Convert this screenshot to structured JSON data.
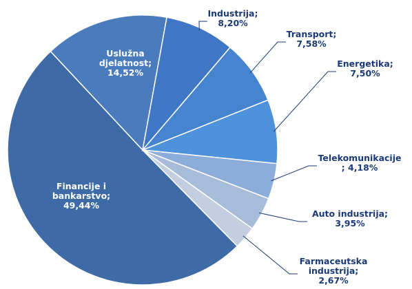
{
  "chart_data": {
    "type": "pie",
    "categories": [
      "Financije i bankarstvo;",
      "Uslužna djelatnost;",
      "Industrija;",
      "Transport;",
      "Energetika;",
      "Telekomunikacije",
      "Auto industrija;",
      "Farmaceutska industrija;"
    ],
    "values": [
      49.44,
      14.52,
      8.2,
      7.58,
      7.5,
      4.18,
      3.95,
      2.67
    ],
    "value_labels": [
      "49,44%",
      "14,52%",
      "8,20%",
      "7,58%",
      "7,50%",
      "; 4,18%",
      "3,95%",
      "2,67%"
    ],
    "colors": [
      "#3e6aa6",
      "#4a7bbd",
      "#3f77c4",
      "#4784cf",
      "#4f92dc",
      "#8cadd9",
      "#a7bcd9",
      "#c3cfe0"
    ]
  }
}
